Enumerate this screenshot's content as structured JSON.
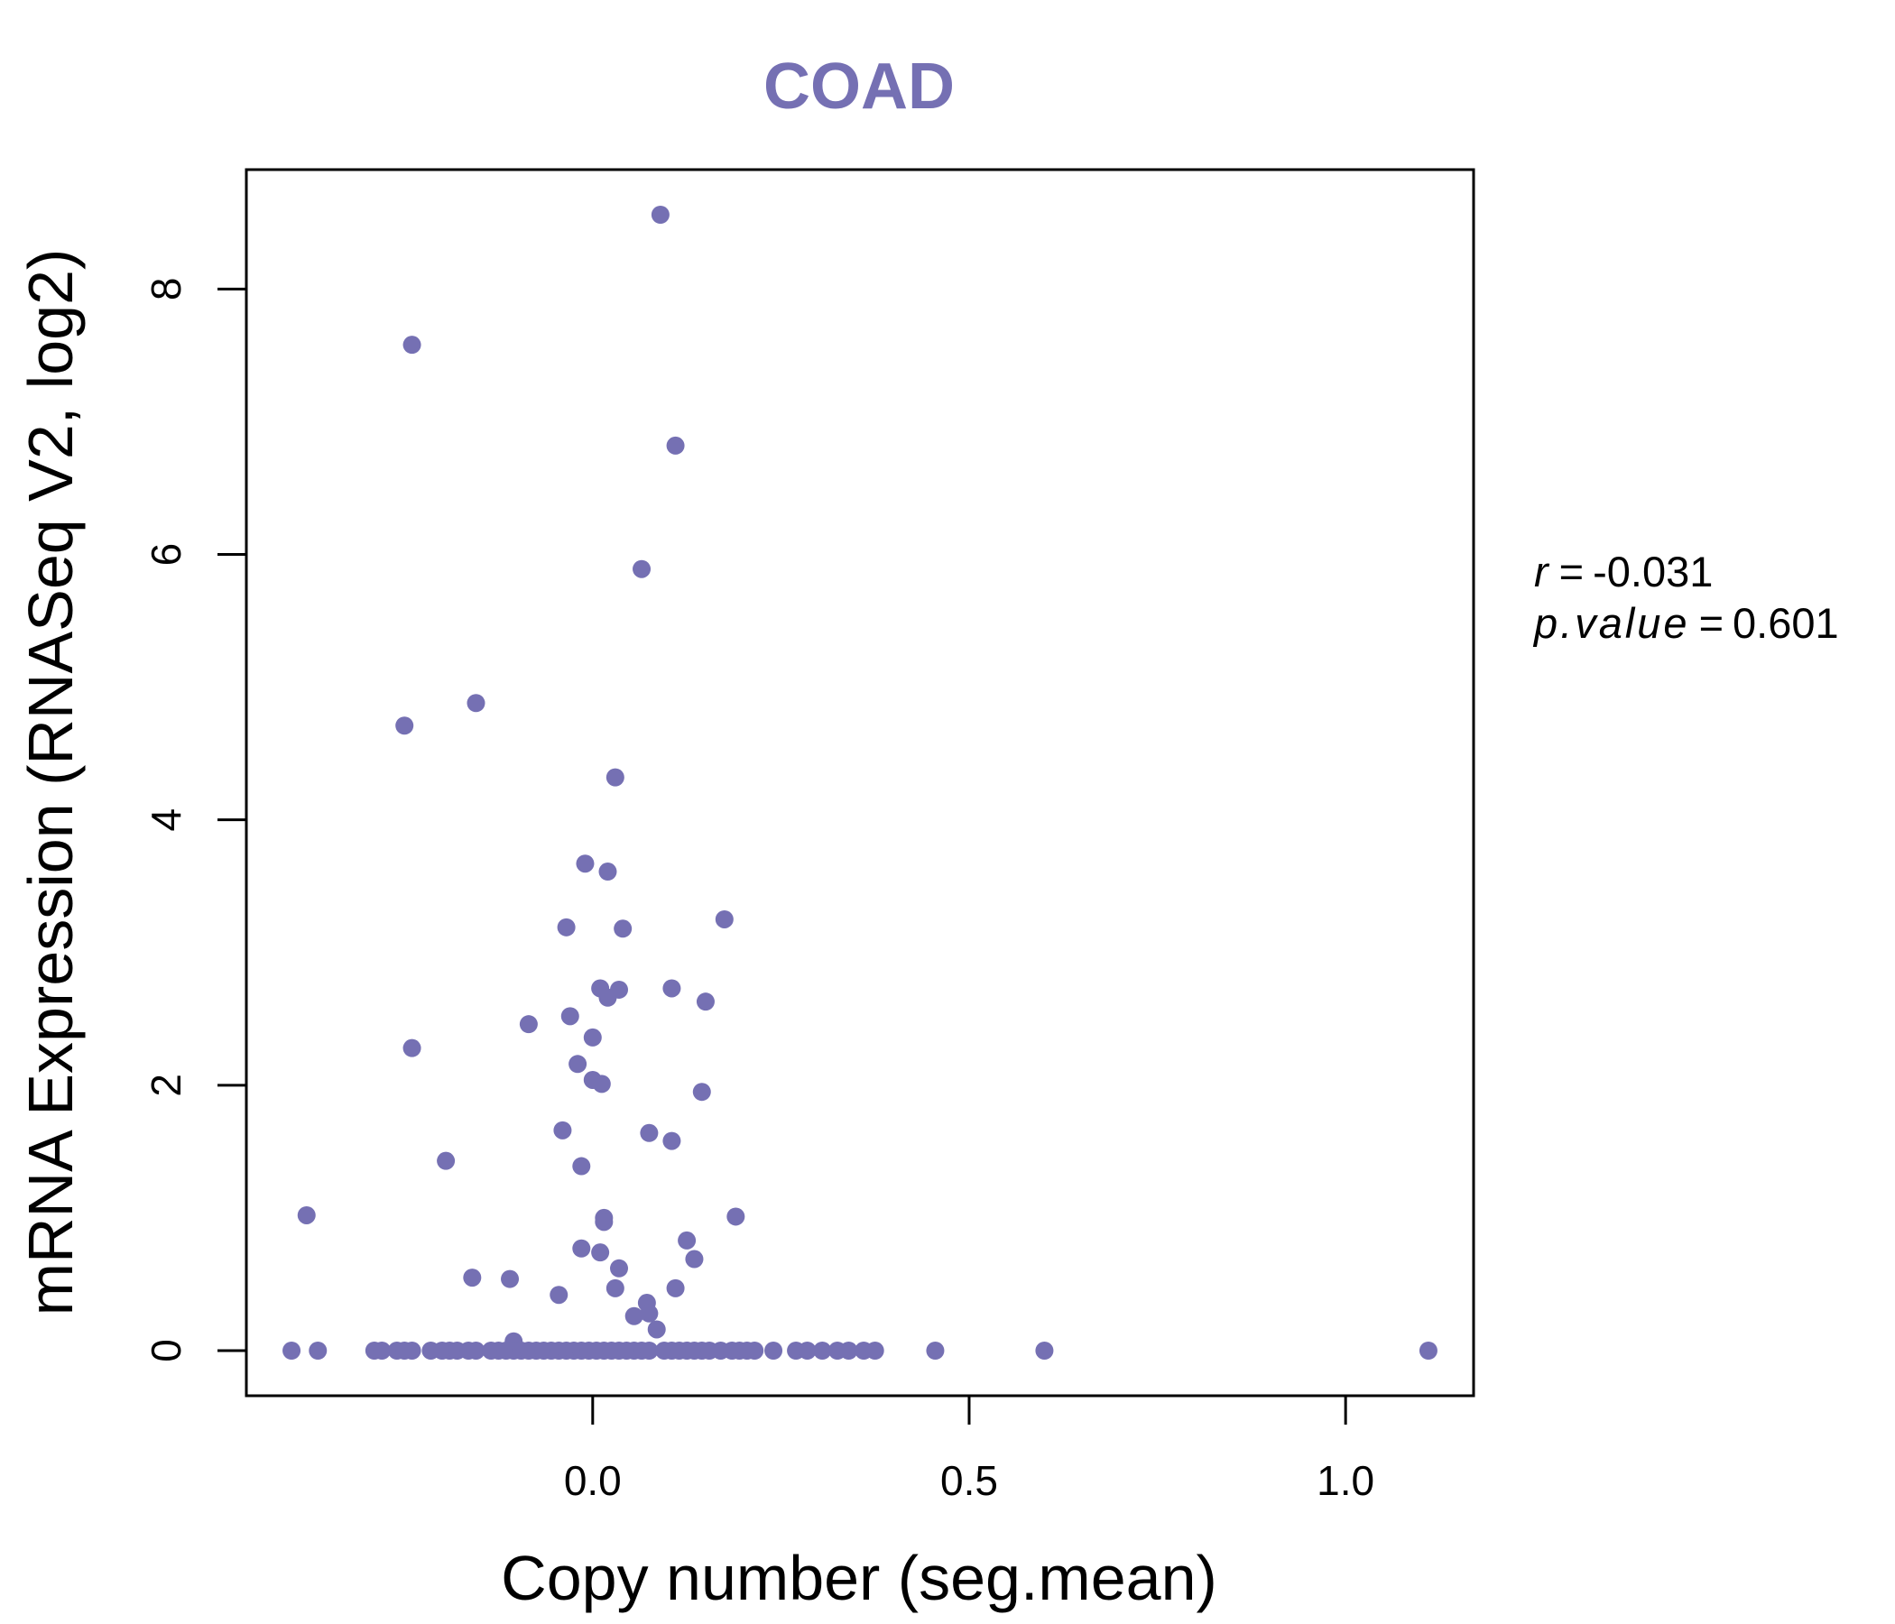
{
  "chart_data": {
    "type": "scatter",
    "title": "COAD",
    "xlabel": "Copy number (seg.mean)",
    "ylabel": "mRNA Expression (RNASeq V2, log2)",
    "xlim": [
      -0.46,
      1.17
    ],
    "ylim": [
      -0.34,
      8.9
    ],
    "xticks": [
      0.0,
      0.5,
      1.0
    ],
    "xtick_labels": [
      "0.0",
      "0.5",
      "1.0"
    ],
    "yticks": [
      0,
      2,
      4,
      6,
      8
    ],
    "ytick_labels": [
      "0",
      "2",
      "4",
      "6",
      "8"
    ],
    "point_color": "#7570b3",
    "grid": false,
    "stats": {
      "r_symbol": "r",
      "r_equals": "=",
      "r_value": "-0.031",
      "p_symbol": "p.value",
      "p_equals": "=",
      "p_value": "0.601"
    },
    "points": [
      {
        "x": 0.09,
        "y": 8.56
      },
      {
        "x": -0.24,
        "y": 7.58
      },
      {
        "x": 0.11,
        "y": 6.82
      },
      {
        "x": 0.065,
        "y": 5.89
      },
      {
        "x": -0.155,
        "y": 4.88
      },
      {
        "x": -0.25,
        "y": 4.71
      },
      {
        "x": 0.03,
        "y": 4.32
      },
      {
        "x": -0.01,
        "y": 3.67
      },
      {
        "x": 0.02,
        "y": 3.61
      },
      {
        "x": 0.175,
        "y": 3.25
      },
      {
        "x": -0.035,
        "y": 3.19
      },
      {
        "x": 0.04,
        "y": 3.18
      },
      {
        "x": 0.01,
        "y": 2.73
      },
      {
        "x": 0.035,
        "y": 2.72
      },
      {
        "x": 0.105,
        "y": 2.73
      },
      {
        "x": 0.02,
        "y": 2.66
      },
      {
        "x": 0.15,
        "y": 2.63
      },
      {
        "x": -0.03,
        "y": 2.52
      },
      {
        "x": -0.085,
        "y": 2.46
      },
      {
        "x": 0.0,
        "y": 2.36
      },
      {
        "x": -0.24,
        "y": 2.28
      },
      {
        "x": -0.02,
        "y": 2.16
      },
      {
        "x": 0.0,
        "y": 2.04
      },
      {
        "x": 0.012,
        "y": 2.01
      },
      {
        "x": 0.145,
        "y": 1.95
      },
      {
        "x": -0.04,
        "y": 1.66
      },
      {
        "x": 0.075,
        "y": 1.64
      },
      {
        "x": 0.105,
        "y": 1.58
      },
      {
        "x": -0.195,
        "y": 1.43
      },
      {
        "x": -0.015,
        "y": 1.39
      },
      {
        "x": -0.38,
        "y": 1.02
      },
      {
        "x": 0.015,
        "y": 1.0
      },
      {
        "x": 0.19,
        "y": 1.01
      },
      {
        "x": 0.015,
        "y": 0.97
      },
      {
        "x": 0.125,
        "y": 0.83
      },
      {
        "x": -0.015,
        "y": 0.77
      },
      {
        "x": 0.01,
        "y": 0.74
      },
      {
        "x": 0.135,
        "y": 0.69
      },
      {
        "x": 0.035,
        "y": 0.62
      },
      {
        "x": -0.16,
        "y": 0.55
      },
      {
        "x": -0.11,
        "y": 0.54
      },
      {
        "x": 0.03,
        "y": 0.47
      },
      {
        "x": 0.11,
        "y": 0.47
      },
      {
        "x": -0.045,
        "y": 0.42
      },
      {
        "x": 0.072,
        "y": 0.36
      },
      {
        "x": 0.075,
        "y": 0.28
      },
      {
        "x": 0.055,
        "y": 0.26
      },
      {
        "x": 0.085,
        "y": 0.16
      },
      {
        "x": -0.105,
        "y": 0.07
      },
      {
        "x": -0.4,
        "y": 0
      },
      {
        "x": -0.365,
        "y": 0
      },
      {
        "x": -0.29,
        "y": 0
      },
      {
        "x": -0.28,
        "y": 0
      },
      {
        "x": -0.26,
        "y": 0
      },
      {
        "x": -0.25,
        "y": 0
      },
      {
        "x": -0.24,
        "y": 0
      },
      {
        "x": -0.215,
        "y": 0
      },
      {
        "x": -0.2,
        "y": 0
      },
      {
        "x": -0.19,
        "y": 0
      },
      {
        "x": -0.18,
        "y": 0
      },
      {
        "x": -0.165,
        "y": 0
      },
      {
        "x": -0.155,
        "y": 0
      },
      {
        "x": -0.135,
        "y": 0
      },
      {
        "x": -0.125,
        "y": 0
      },
      {
        "x": -0.115,
        "y": 0
      },
      {
        "x": -0.105,
        "y": 0
      },
      {
        "x": -0.095,
        "y": 0
      },
      {
        "x": -0.085,
        "y": 0
      },
      {
        "x": -0.075,
        "y": 0
      },
      {
        "x": -0.065,
        "y": 0
      },
      {
        "x": -0.055,
        "y": 0
      },
      {
        "x": -0.045,
        "y": 0
      },
      {
        "x": -0.035,
        "y": 0
      },
      {
        "x": -0.025,
        "y": 0
      },
      {
        "x": -0.015,
        "y": 0
      },
      {
        "x": -0.005,
        "y": 0
      },
      {
        "x": 0.005,
        "y": 0
      },
      {
        "x": 0.015,
        "y": 0
      },
      {
        "x": 0.025,
        "y": 0
      },
      {
        "x": 0.035,
        "y": 0
      },
      {
        "x": 0.045,
        "y": 0
      },
      {
        "x": 0.055,
        "y": 0
      },
      {
        "x": 0.065,
        "y": 0
      },
      {
        "x": 0.075,
        "y": 0
      },
      {
        "x": 0.095,
        "y": 0
      },
      {
        "x": 0.105,
        "y": 0
      },
      {
        "x": 0.115,
        "y": 0
      },
      {
        "x": 0.125,
        "y": 0
      },
      {
        "x": 0.135,
        "y": 0
      },
      {
        "x": 0.145,
        "y": 0
      },
      {
        "x": 0.155,
        "y": 0
      },
      {
        "x": 0.17,
        "y": 0
      },
      {
        "x": 0.185,
        "y": 0
      },
      {
        "x": 0.195,
        "y": 0
      },
      {
        "x": 0.205,
        "y": 0
      },
      {
        "x": 0.215,
        "y": 0
      },
      {
        "x": 0.24,
        "y": 0
      },
      {
        "x": 0.27,
        "y": 0
      },
      {
        "x": 0.285,
        "y": 0
      },
      {
        "x": 0.305,
        "y": 0
      },
      {
        "x": 0.325,
        "y": 0
      },
      {
        "x": 0.34,
        "y": 0
      },
      {
        "x": 0.36,
        "y": 0
      },
      {
        "x": 0.375,
        "y": 0
      },
      {
        "x": 0.455,
        "y": 0
      },
      {
        "x": 0.6,
        "y": 0
      },
      {
        "x": 1.11,
        "y": 0
      }
    ]
  }
}
